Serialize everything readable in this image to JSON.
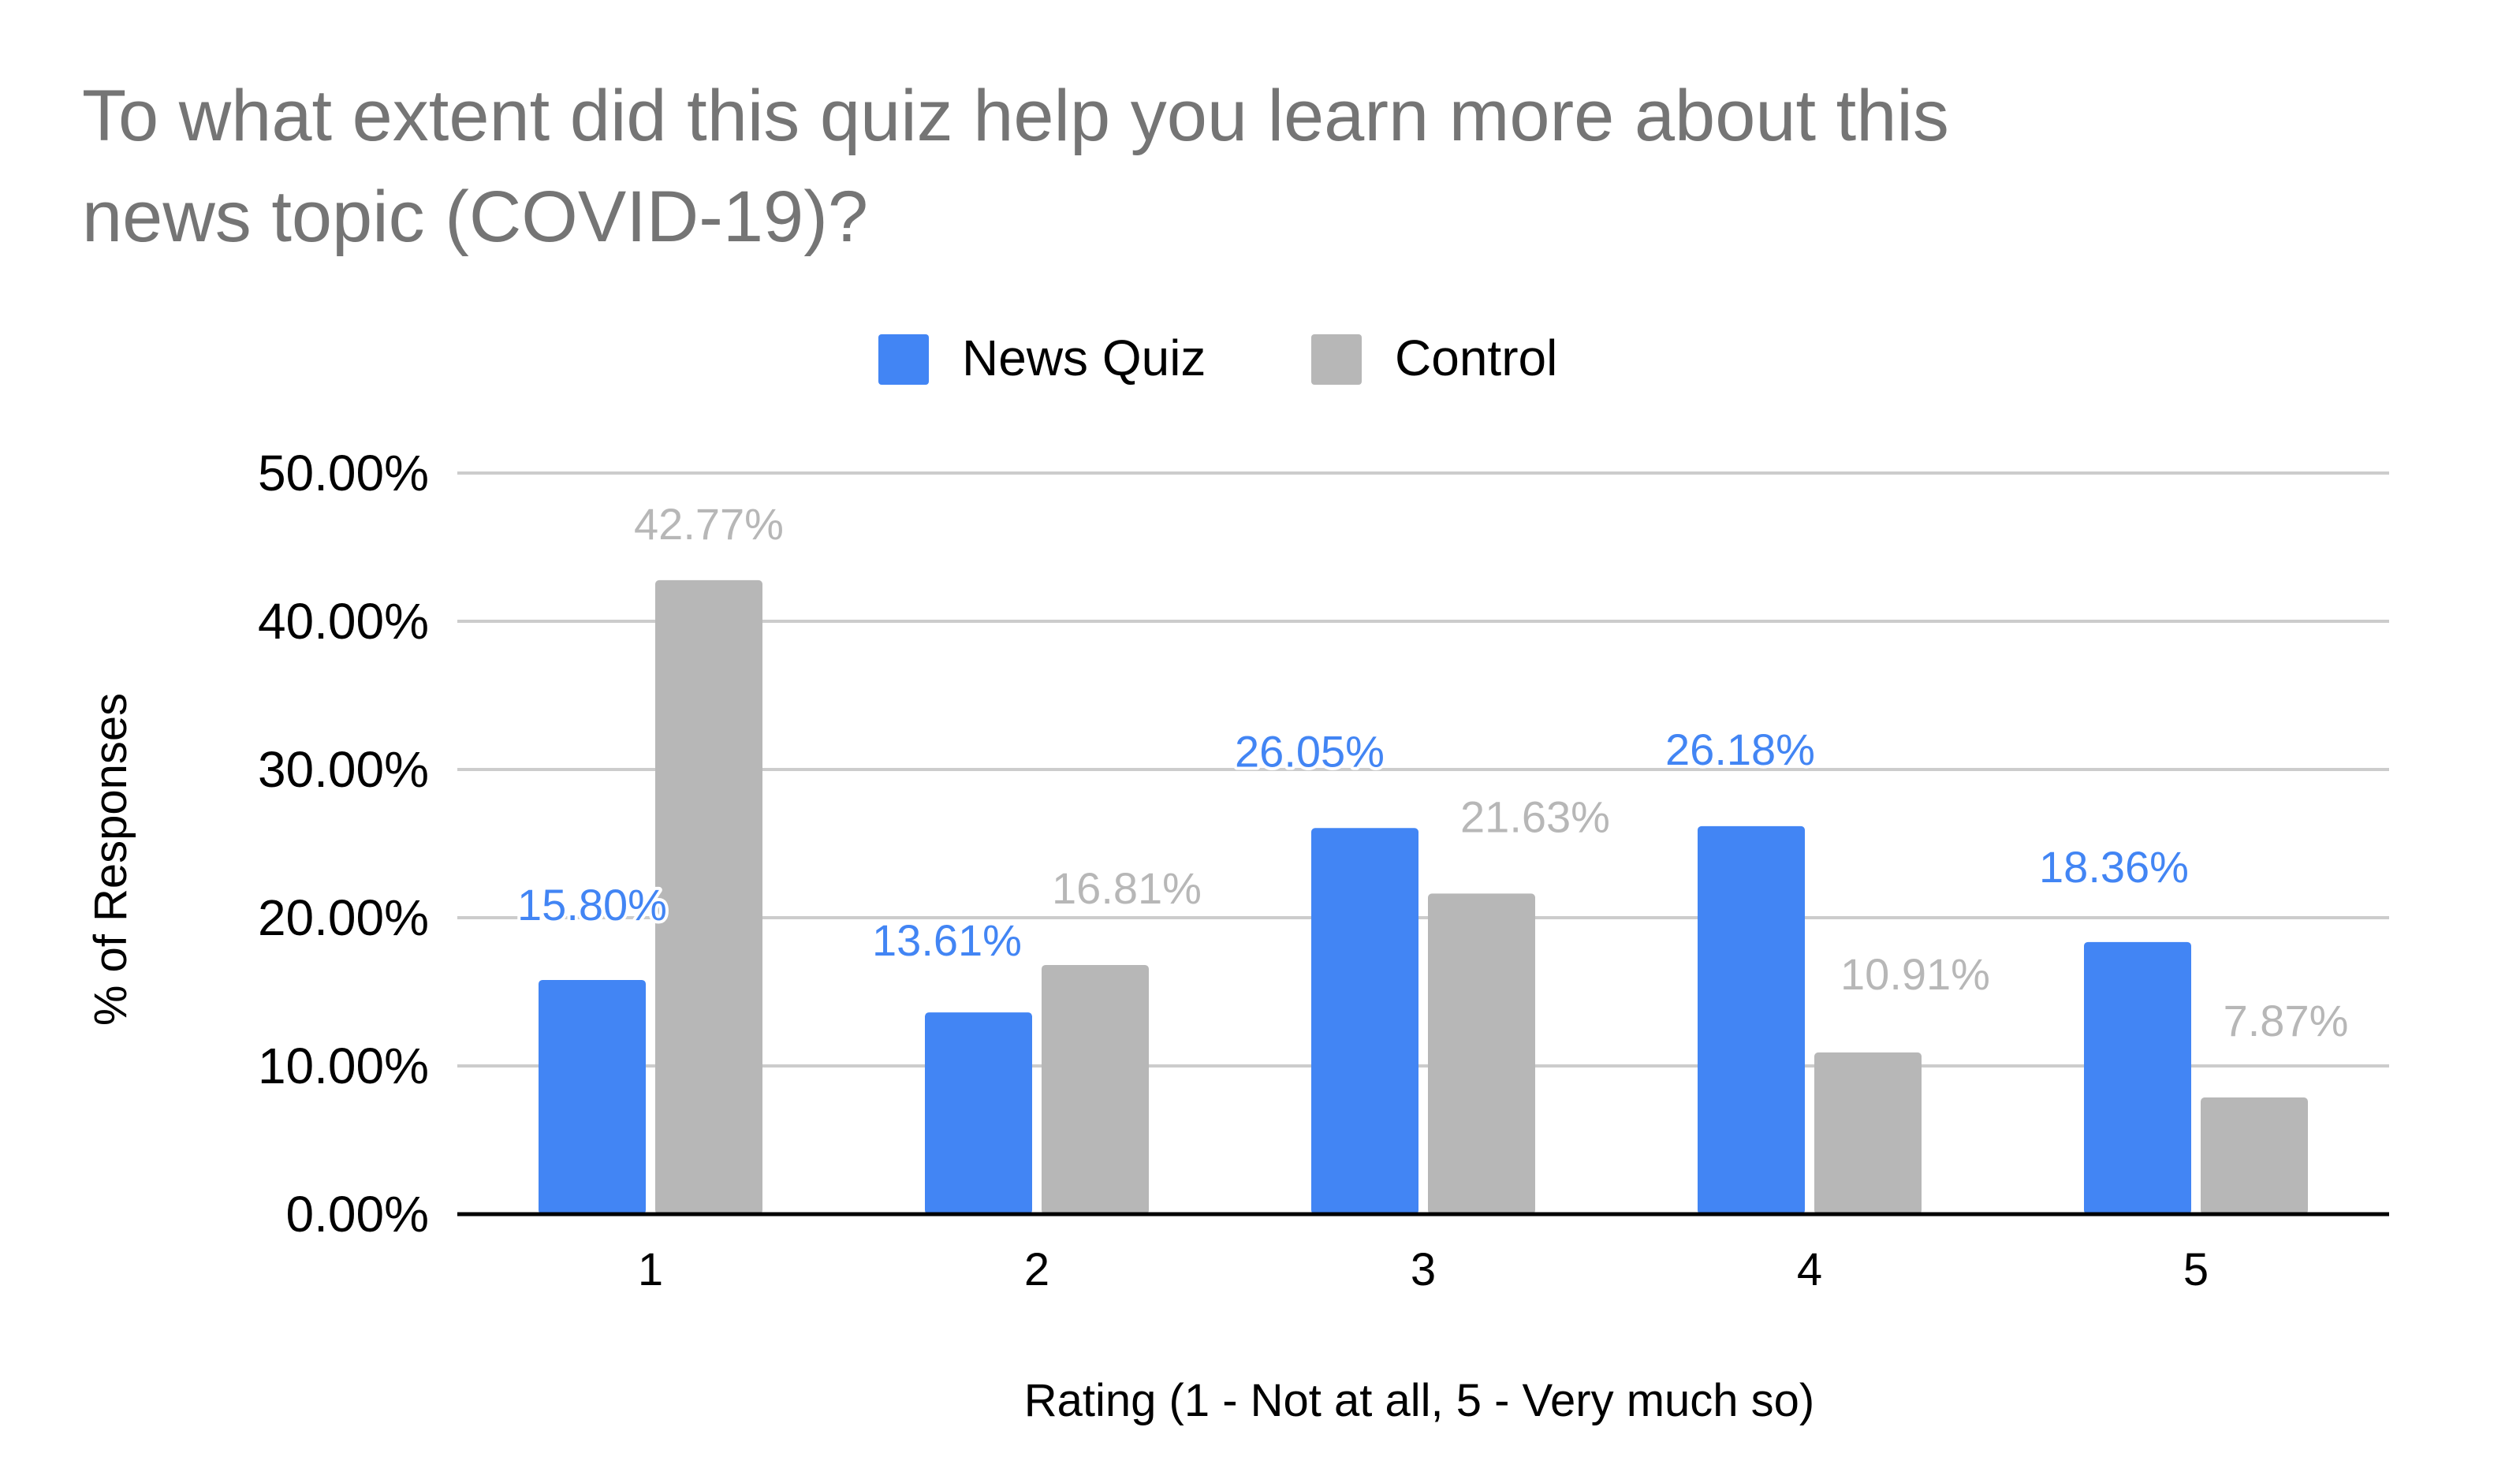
{
  "chart_data": {
    "type": "bar",
    "title": "To what extent did this quiz help you learn more about this news topic (COVID-19)?",
    "title_lines": [
      "To what extent did this quiz help you learn more about this",
      "news topic (COVID-19)?"
    ],
    "xlabel": "Rating (1 - Not at all, 5 - Very much so)",
    "ylabel": "% of Responses",
    "categories": [
      "1",
      "2",
      "3",
      "4",
      "5"
    ],
    "series": [
      {
        "name": "News Quiz",
        "color": "#4285f4",
        "values": [
          15.8,
          13.61,
          26.05,
          26.18,
          18.36
        ],
        "labels": [
          "15.80%",
          "13.61%",
          "26.05%",
          "26.18%",
          "18.36%"
        ]
      },
      {
        "name": "Control",
        "color": "#b7b7b7",
        "values": [
          42.77,
          16.81,
          21.63,
          10.91,
          7.87
        ],
        "labels": [
          "42.77%",
          "16.81%",
          "21.63%",
          "10.91%",
          "7.87%"
        ]
      }
    ],
    "ylim": [
      0,
      50
    ],
    "yticks": [
      0,
      10,
      20,
      30,
      40,
      50
    ],
    "ytick_labels": [
      "0.00%",
      "10.00%",
      "20.00%",
      "30.00%",
      "40.00%",
      "50.00%"
    ],
    "grid": true,
    "legend_position": "top-center",
    "colors": {
      "title": "#757575",
      "text": "#000000",
      "grid": "#cccccc",
      "axis": "#000000"
    }
  }
}
